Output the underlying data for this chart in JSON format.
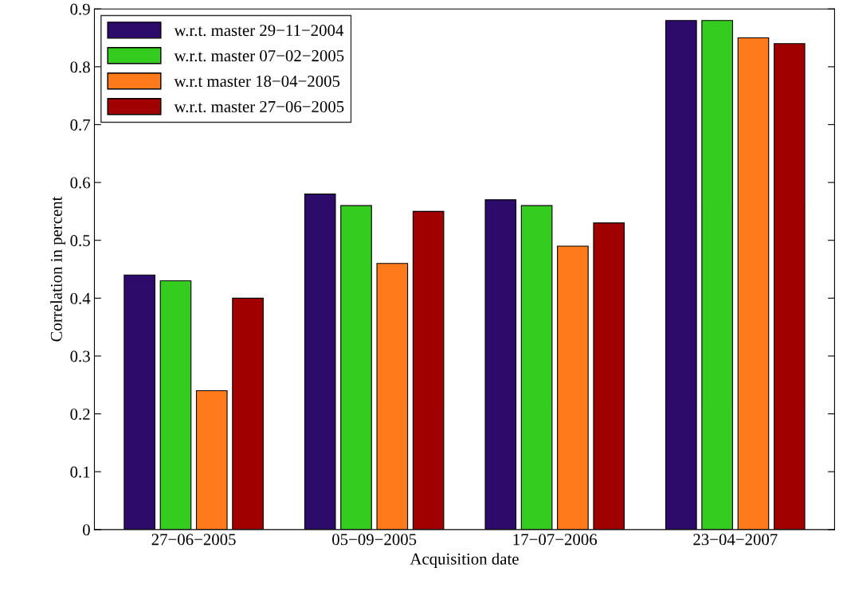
{
  "chart_data": {
    "type": "bar",
    "xlabel": "Acquisition date",
    "ylabel": "Correlation in percent",
    "categories": [
      "27−06−2005",
      "05−09−2005",
      "17−07−2006",
      "23−04−2007"
    ],
    "series": [
      {
        "name": "w.r.t. master 29−11−2004",
        "color": "#2c0b6b",
        "values": [
          0.44,
          0.58,
          0.57,
          0.88
        ]
      },
      {
        "name": "w.r.t. master 07−02−2005",
        "color": "#33cc1f",
        "values": [
          0.43,
          0.56,
          0.56,
          0.88
        ]
      },
      {
        "name": "w.r.t master 18−04−2005",
        "color": "#ff7a1a",
        "values": [
          0.24,
          0.46,
          0.49,
          0.85
        ]
      },
      {
        "name": "w.r.t. master 27−06−2005",
        "color": "#a00000",
        "values": [
          0.4,
          0.55,
          0.53,
          0.84
        ]
      }
    ],
    "ylim": [
      0,
      0.9
    ],
    "yticks": [
      0,
      0.1,
      0.2,
      0.3,
      0.4,
      0.5,
      0.6,
      0.7,
      0.8,
      0.9
    ],
    "grid": false,
    "legend": "top left"
  }
}
